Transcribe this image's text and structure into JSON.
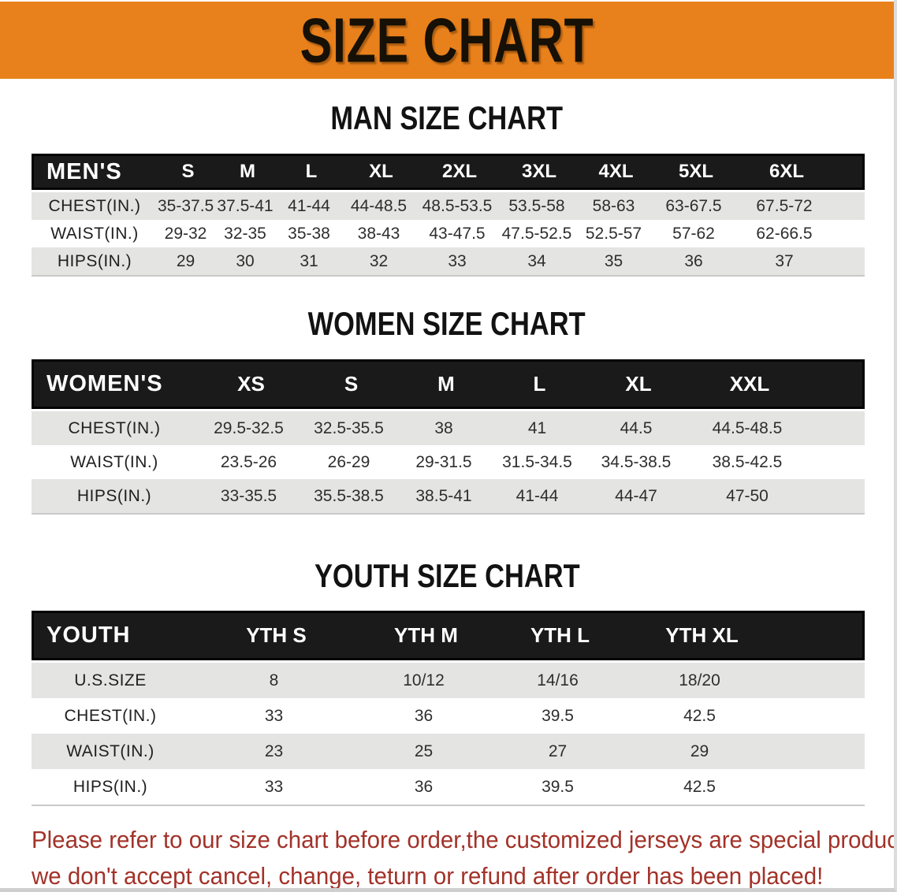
{
  "banner": {
    "title": "SIZE CHART"
  },
  "men": {
    "heading": "MAN SIZE CHART",
    "label": "MEN'S",
    "sizes": [
      "S",
      "M",
      "L",
      "XL",
      "2XL",
      "3XL",
      "4XL",
      "5XL",
      "6XL"
    ],
    "rows": [
      {
        "label": "CHEST(IN.)",
        "values": [
          "35-37.5",
          "37.5-41",
          "41-44",
          "44-48.5",
          "48.5-53.5",
          "53.5-58",
          "58-63",
          "63-67.5",
          "67.5-72"
        ]
      },
      {
        "label": "WAIST(IN.)",
        "values": [
          "29-32",
          "32-35",
          "35-38",
          "38-43",
          "43-47.5",
          "47.5-52.5",
          "52.5-57",
          "57-62",
          "62-66.5"
        ]
      },
      {
        "label": "HIPS(IN.)",
        "values": [
          "29",
          "30",
          "31",
          "32",
          "33",
          "34",
          "35",
          "36",
          "37"
        ]
      }
    ]
  },
  "women": {
    "heading": "WOMEN SIZE CHART",
    "label": "WOMEN'S",
    "sizes": [
      "XS",
      "S",
      "M",
      "L",
      "XL",
      "XXL"
    ],
    "rows": [
      {
        "label": "CHEST(IN.)",
        "values": [
          "29.5-32.5",
          "32.5-35.5",
          "38",
          "41",
          "44.5",
          "44.5-48.5"
        ]
      },
      {
        "label": "WAIST(IN.)",
        "values": [
          "23.5-26",
          "26-29",
          "29-31.5",
          "31.5-34.5",
          "34.5-38.5",
          "38.5-42.5"
        ]
      },
      {
        "label": "HIPS(IN.)",
        "values": [
          "33-35.5",
          "35.5-38.5",
          "38.5-41",
          "41-44",
          "44-47",
          "47-50"
        ]
      }
    ]
  },
  "youth": {
    "heading": "YOUTH SIZE CHART",
    "label": "YOUTH",
    "sizes": [
      "YTH S",
      "YTH M",
      "YTH L",
      "YTH XL"
    ],
    "rows": [
      {
        "label": "U.S.SIZE",
        "values": [
          "8",
          "10/12",
          "14/16",
          "18/20"
        ]
      },
      {
        "label": "CHEST(IN.)",
        "values": [
          "33",
          "36",
          "39.5",
          "42.5"
        ]
      },
      {
        "label": "WAIST(IN.)",
        "values": [
          "23",
          "25",
          "27",
          "29"
        ]
      },
      {
        "label": "HIPS(IN.)",
        "values": [
          "33",
          "36",
          "39.5",
          "42.5"
        ]
      }
    ]
  },
  "disclaimer": {
    "line1": "Please refer to our size chart before order,the customized jerseys are special products,",
    "line2": "we don't accept cancel, change, teturn or refund after order has been placed!"
  },
  "colors": {
    "banner_bg": "#E8811C",
    "band_bg": "#1A1A1A",
    "row_gray": "#E4E4E3",
    "disclaimer_red": "#A23229"
  }
}
